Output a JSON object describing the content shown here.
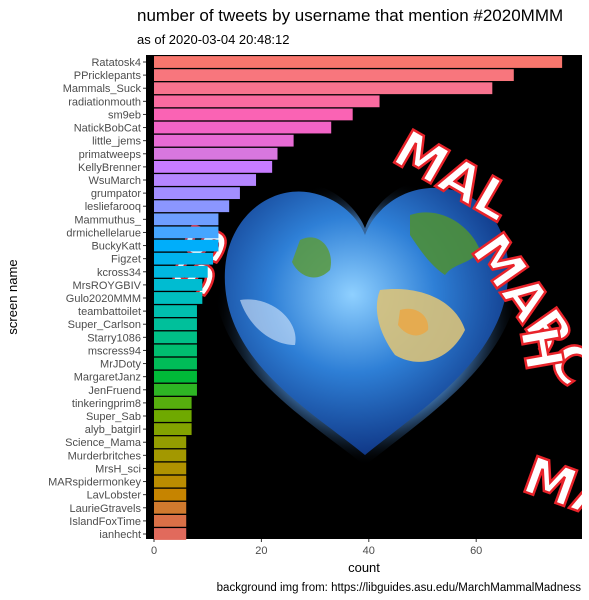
{
  "title": "number of tweets by username that mention #2020MMM",
  "subtitle": "as of 2020-03-04 20:48:12",
  "caption": "background img from: https://libguides.asu.edu/MarchMammalMadness",
  "background_image": {
    "icon": "earth-heart-icon",
    "text": "ANIMAL MARCH MADNESS",
    "text_color": "#ffffff",
    "text_outline_color": "#e8232a"
  },
  "chart_data": {
    "type": "bar",
    "orientation": "horizontal",
    "xlabel": "count",
    "ylabel": "screen name",
    "xlim": [
      0,
      78
    ],
    "xticks": [
      0,
      20,
      40,
      60
    ],
    "panel_background": "#000000",
    "grid": false,
    "categories": [
      "Ratatosk4",
      "PPricklepants",
      "Mammals_Suck",
      "radiationmouth",
      "sm9eb",
      "NatickBobCat",
      "little_jems",
      "primatweeps",
      "KellyBrenner",
      "WsuMarch",
      "grumpator",
      "lesliefarooq",
      "Mammuthus_",
      "drmichellelarue",
      "BuckyKatt",
      "Figzet",
      "kcross34",
      "MrsROYGBIV",
      "Gulo2020MMM",
      "teambattoilet",
      "Super_Carlson",
      "Starry1086",
      "mscress94",
      "MrJDoty",
      "MargaretJanz",
      "JenFruend",
      "tinkeringprim8",
      "Super_Sab",
      "alyb_batgirl",
      "Science_Mama",
      "Murderbritches",
      "MrsH_sci",
      "MARspidermonkey",
      "LavLobster",
      "LaurieGtravels",
      "IslandFoxTime",
      "ianhecht"
    ],
    "values": [
      76,
      67,
      63,
      42,
      37,
      33,
      26,
      23,
      22,
      19,
      16,
      14,
      12,
      12,
      12,
      11,
      10,
      9,
      9,
      8,
      8,
      8,
      8,
      8,
      8,
      8,
      7,
      7,
      7,
      6,
      6,
      6,
      6,
      6,
      6,
      6,
      6
    ],
    "colors": [
      "#F8766D",
      "#F8767D",
      "#F8738E",
      "#FA6BA0",
      "#FA63B4",
      "#F264C6",
      "#E76BD4",
      "#D877DF",
      "#C77CFF",
      "#B586FF",
      "#A28EFF",
      "#8B96FF",
      "#6E9EFF",
      "#45A6FF",
      "#00AEFA",
      "#00B3EE",
      "#00B8E0",
      "#00BCD1",
      "#00BFC0",
      "#00BFAE",
      "#00C09B",
      "#00C087",
      "#00BE70",
      "#00BC58",
      "#00BA38",
      "#2EB524",
      "#56AF0E",
      "#6FA900",
      "#83A300",
      "#949D00",
      "#A39800",
      "#B09200",
      "#BB8C00",
      "#C68400",
      "#D07A2E",
      "#DA7047",
      "#E16A5C"
    ]
  }
}
